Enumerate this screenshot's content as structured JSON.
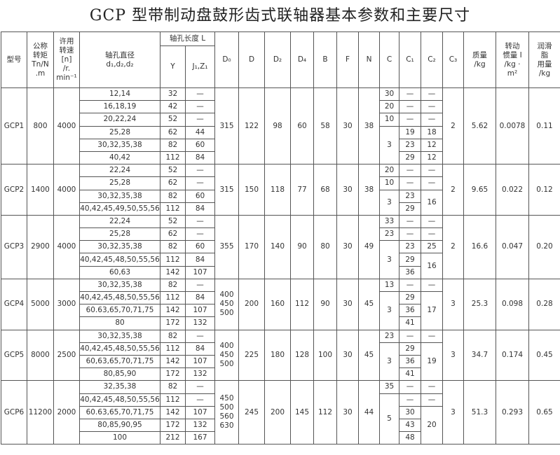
{
  "title": "GCP 型带制动盘鼓形齿式联轴器基本参数和主要尺寸",
  "headers": {
    "model": "型号",
    "torque": [
      "公称",
      "转矩",
      "Tn/N",
      ".m"
    ],
    "speed": [
      "许用",
      "转速",
      "[n]",
      "/r.",
      "min⁻¹"
    ],
    "bore": [
      "轴孔直径",
      "d₁,d₂,d₂"
    ],
    "length": "轴孔长度 L",
    "Y": "Y",
    "JZ": "J₁,Z₁",
    "D0": "D₀",
    "D": "D",
    "D2": "D₂",
    "D4": "D₄",
    "B": "B",
    "F": "F",
    "N": "N",
    "C": "C",
    "C1": "C₁",
    "C2": "C₂",
    "C3": "C₃",
    "mass": [
      "质量",
      "/kg"
    ],
    "inertia": [
      "转动",
      "惯量 I",
      "/kg ·",
      "m²"
    ],
    "grease": [
      "润滑",
      "脂",
      "用量",
      "/kg"
    ]
  },
  "groups": [
    {
      "model": "GCP1",
      "torque": "800",
      "speed": "4000",
      "d": [
        "12,14",
        "16,18,19",
        "20,22,24",
        "25,28",
        "30,32,35,38",
        "40,42"
      ],
      "Y": [
        "32",
        "42",
        "52",
        "62",
        "82",
        "112"
      ],
      "JZ": [
        "—",
        "—",
        "—",
        "44",
        "60",
        "84"
      ],
      "D0": [
        "315"
      ],
      "D": "122",
      "D2": "98",
      "D4": "60",
      "B": "58",
      "F": "30",
      "N": "38",
      "C": [
        {
          "v": "30",
          "span": 1
        },
        {
          "v": "20",
          "span": 1
        },
        {
          "v": "10",
          "span": 1
        },
        {
          "v": "3",
          "span": 3
        }
      ],
      "C1": [
        {
          "v": "—",
          "span": 1
        },
        {
          "v": "—",
          "span": 1
        },
        {
          "v": "—",
          "span": 1
        },
        {
          "v": "19",
          "span": 1
        },
        {
          "v": "23",
          "span": 1
        },
        {
          "v": "29",
          "span": 1
        }
      ],
      "C2": [
        {
          "v": "—",
          "span": 1
        },
        {
          "v": "—",
          "span": 1
        },
        {
          "v": "—",
          "span": 1
        },
        {
          "v": "18",
          "span": 1
        },
        {
          "v": "12",
          "span": 1
        },
        {
          "v": "12",
          "span": 1
        }
      ],
      "C3": "2",
      "mass": "5.62",
      "inertia": "0.0078",
      "grease": "0.11"
    },
    {
      "model": "GCP2",
      "torque": "1400",
      "speed": "4000",
      "d": [
        "22,24",
        "25,28",
        "30,32,35,38",
        "40,42,45,49,50,55,56"
      ],
      "Y": [
        "52",
        "62",
        "82",
        "112"
      ],
      "JZ": [
        "—",
        "—",
        "60",
        "84"
      ],
      "D0": [
        "315"
      ],
      "D": "150",
      "D2": "118",
      "D4": "77",
      "B": "68",
      "F": "30",
      "N": "38",
      "C": [
        {
          "v": "20",
          "span": 1
        },
        {
          "v": "10",
          "span": 1
        },
        {
          "v": "3",
          "span": 2
        }
      ],
      "C1": [
        {
          "v": "—",
          "span": 1
        },
        {
          "v": "—",
          "span": 1
        },
        {
          "v": "23",
          "span": 1
        },
        {
          "v": "29",
          "span": 1
        }
      ],
      "C2": [
        {
          "v": "—",
          "span": 1
        },
        {
          "v": "—",
          "span": 1
        },
        {
          "v": "16",
          "span": 2
        }
      ],
      "C3": "2",
      "mass": "9.65",
      "inertia": "0.022",
      "grease": "0.12"
    },
    {
      "model": "GCP3",
      "torque": "2900",
      "speed": "4000",
      "d": [
        "22,24",
        "25,28",
        "30,32,35,38",
        "40,42,45,48,50,55,56",
        "60,63"
      ],
      "Y": [
        "52",
        "62",
        "82",
        "112",
        "142"
      ],
      "JZ": [
        "—",
        "—",
        "60",
        "84",
        "107"
      ],
      "D0": [
        "355"
      ],
      "D": "170",
      "D2": "140",
      "D4": "90",
      "B": "80",
      "F": "30",
      "N": "49",
      "C": [
        {
          "v": "33",
          "span": 1
        },
        {
          "v": "23",
          "span": 1
        },
        {
          "v": "3",
          "span": 3
        }
      ],
      "C1": [
        {
          "v": "—",
          "span": 1
        },
        {
          "v": "—",
          "span": 1
        },
        {
          "v": "23",
          "span": 1
        },
        {
          "v": "29",
          "span": 1
        },
        {
          "v": "36",
          "span": 1
        }
      ],
      "C2": [
        {
          "v": "—",
          "span": 1
        },
        {
          "v": "—",
          "span": 1
        },
        {
          "v": "25",
          "span": 1
        },
        {
          "v": "16",
          "span": 2
        }
      ],
      "C3": "2",
      "mass": "16.6",
      "inertia": "0.047",
      "grease": "0.20"
    },
    {
      "model": "GCP4",
      "torque": "5000",
      "speed": "3000",
      "d": [
        "30,32,35,38",
        "40,42,45,48,50,55,56",
        "60.63,65,70,71,75",
        "80"
      ],
      "Y": [
        "82",
        "112",
        "142",
        "172"
      ],
      "JZ": [
        "—",
        "84",
        "107",
        "132"
      ],
      "D0": [
        "400",
        "450",
        "500"
      ],
      "D": "200",
      "D2": "160",
      "D4": "112",
      "B": "90",
      "F": "30",
      "N": "45",
      "C": [
        {
          "v": "13",
          "span": 1
        },
        {
          "v": "3",
          "span": 3
        }
      ],
      "C1": [
        {
          "v": "—",
          "span": 1
        },
        {
          "v": "29",
          "span": 1
        },
        {
          "v": "36",
          "span": 1
        },
        {
          "v": "41",
          "span": 1
        }
      ],
      "C2": [
        {
          "v": "—",
          "span": 1
        },
        {
          "v": "17",
          "span": 3
        }
      ],
      "C3": "3",
      "mass": "25.3",
      "inertia": "0.098",
      "grease": "0.28"
    },
    {
      "model": "GCP5",
      "torque": "8000",
      "speed": "2500",
      "d": [
        "30,32,35,38",
        "40,42,45,48,50,55,56",
        "60,63,65,70,71,75",
        "80,85,90"
      ],
      "Y": [
        "82",
        "112",
        "142",
        "172"
      ],
      "JZ": [
        "—",
        "84",
        "107",
        "132"
      ],
      "D0": [
        "400",
        "450",
        "500"
      ],
      "D": "225",
      "D2": "180",
      "D4": "128",
      "B": "100",
      "F": "30",
      "N": "45",
      "C": [
        {
          "v": "23",
          "span": 1
        },
        {
          "v": "3",
          "span": 3
        }
      ],
      "C1": [
        {
          "v": "—",
          "span": 1
        },
        {
          "v": "29",
          "span": 1
        },
        {
          "v": "36",
          "span": 1
        },
        {
          "v": "41",
          "span": 1
        }
      ],
      "C2": [
        {
          "v": "—",
          "span": 1
        },
        {
          "v": "19",
          "span": 3
        }
      ],
      "C3": "3",
      "mass": "34.7",
      "inertia": "0.174",
      "grease": "0.45"
    },
    {
      "model": "GCP6",
      "torque": "11200",
      "speed": "2000",
      "d": [
        "32,35,38",
        "40,42,45,48,50,55,56",
        "60.63,65,70,71,75",
        "80,85,90,95",
        "100"
      ],
      "Y": [
        "82",
        "112",
        "142",
        "172",
        "212"
      ],
      "JZ": [
        "—",
        "—",
        "107",
        "132",
        "167"
      ],
      "D0": [
        "450",
        "500",
        "560",
        "630"
      ],
      "D": "245",
      "D2": "200",
      "D4": "145",
      "B": "112",
      "F": "30",
      "N": "44",
      "C": [
        {
          "v": "35",
          "span": 1
        },
        {
          "v": "5",
          "span": 4
        }
      ],
      "C1": [
        {
          "v": "—",
          "span": 1
        },
        {
          "v": "—",
          "span": 1
        },
        {
          "v": "30",
          "span": 1
        },
        {
          "v": "43",
          "span": 1
        },
        {
          "v": "48",
          "span": 1
        }
      ],
      "C2": [
        {
          "v": "—",
          "span": 1
        },
        {
          "v": "—",
          "span": 1
        },
        {
          "v": "20",
          "span": 3
        }
      ],
      "C3": "3",
      "mass": "51.3",
      "inertia": "0.293",
      "grease": "0.65"
    }
  ]
}
